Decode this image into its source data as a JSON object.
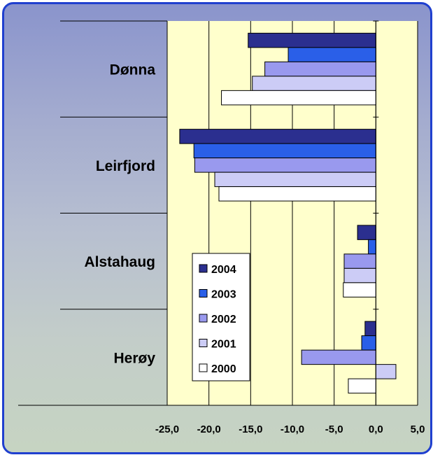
{
  "chart_data": {
    "type": "bar",
    "orientation": "horizontal",
    "categories": [
      "Dønna",
      "Leirfjord",
      "Alstahaug",
      "Herøy"
    ],
    "series": [
      {
        "name": "2004",
        "color": "#2b2f8f",
        "values": [
          -15.3,
          -23.5,
          -2.2,
          -1.3
        ]
      },
      {
        "name": "2003",
        "color": "#2a5fe8",
        "values": [
          -10.5,
          -21.8,
          -0.9,
          -1.7
        ]
      },
      {
        "name": "2002",
        "color": "#9999ee",
        "values": [
          -13.3,
          -21.7,
          -3.8,
          -8.9
        ]
      },
      {
        "name": "2001",
        "color": "#ccccf6",
        "values": [
          -14.8,
          -19.3,
          -3.8,
          2.4
        ]
      },
      {
        "name": "2000",
        "color": "#ffffff",
        "values": [
          -18.5,
          -18.8,
          -3.9,
          -3.3
        ]
      }
    ],
    "xlim": [
      -25,
      5
    ],
    "x_ticks": [
      "-25,0",
      "-20,0",
      "-15,0",
      "-10,0",
      "-5,0",
      "0,0",
      "5,0"
    ],
    "plot_background": "#ffffcc",
    "grid": true,
    "legend_position": "lower-left",
    "title": "",
    "xlabel": "",
    "ylabel": ""
  }
}
